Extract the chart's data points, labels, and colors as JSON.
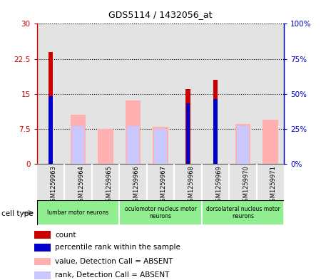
{
  "title": "GDS5114 / 1432056_at",
  "samples": [
    "GSM1259963",
    "GSM1259964",
    "GSM1259965",
    "GSM1259966",
    "GSM1259967",
    "GSM1259968",
    "GSM1259969",
    "GSM1259970",
    "GSM1259971"
  ],
  "count_values": [
    24.0,
    0,
    0,
    0,
    0,
    16.0,
    18.0,
    0,
    0
  ],
  "rank_values": [
    48.5,
    0,
    0,
    0,
    0,
    43.0,
    46.5,
    0,
    0
  ],
  "absent_value_values": [
    0,
    10.5,
    7.5,
    13.5,
    8.0,
    0,
    0,
    8.5,
    9.5
  ],
  "absent_rank_values": [
    0,
    8.5,
    0,
    8.5,
    8.0,
    0,
    0,
    8.5,
    0
  ],
  "absent_rank_pct": [
    0,
    27,
    0,
    27,
    25,
    0,
    0,
    27,
    0
  ],
  "ylim_left": [
    0,
    30
  ],
  "ylim_right": [
    0,
    100
  ],
  "yticks_left": [
    0,
    7.5,
    15,
    22.5,
    30
  ],
  "yticks_right": [
    0,
    25,
    50,
    75,
    100
  ],
  "ytick_labels_left": [
    "0",
    "7.5",
    "15",
    "22.5",
    "30"
  ],
  "ytick_labels_right": [
    "0%",
    "25%",
    "50%",
    "75%",
    "100%"
  ],
  "cell_groups": [
    {
      "label": "lumbar motor neurons",
      "start": 0,
      "end": 3
    },
    {
      "label": "oculomotor nucleus motor\nneurons",
      "start": 3,
      "end": 6
    },
    {
      "label": "dorsolateral nucleus motor\nneurons",
      "start": 6,
      "end": 9
    }
  ],
  "cell_type_label": "cell type",
  "color_count": "#cc0000",
  "color_rank": "#0000cc",
  "color_absent_value": "#ffb0b0",
  "color_absent_rank": "#c8c8ff",
  "color_axis_left": "#cc0000",
  "color_axis_right": "#0000cc",
  "color_cell_bg": "#c8c8c8",
  "color_group_bg": "#90ee90",
  "legend_items": [
    {
      "color": "#cc0000",
      "label": "count"
    },
    {
      "color": "#0000cc",
      "label": "percentile rank within the sample"
    },
    {
      "color": "#ffb0b0",
      "label": "value, Detection Call = ABSENT"
    },
    {
      "color": "#c8c8ff",
      "label": "rank, Detection Call = ABSENT"
    }
  ]
}
